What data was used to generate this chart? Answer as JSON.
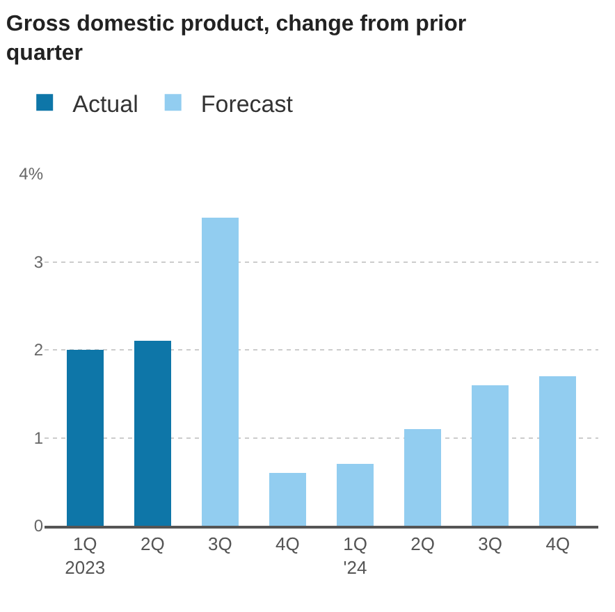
{
  "chart_data": {
    "type": "bar",
    "title": "Gross domestic product, change from prior quarter",
    "categories": [
      "1Q\n2023",
      "2Q",
      "3Q",
      "4Q",
      "1Q\n'24",
      "2Q",
      "3Q",
      "4Q"
    ],
    "series": [
      {
        "name": "Actual",
        "color": "#0e76a8",
        "values": [
          2.0,
          2.1,
          null,
          null,
          null,
          null,
          null,
          null
        ]
      },
      {
        "name": "Forecast",
        "color": "#92cdf0",
        "values": [
          null,
          null,
          3.5,
          0.6,
          0.7,
          1.1,
          1.6,
          1.7
        ]
      }
    ],
    "stacked": true,
    "ylim": [
      0,
      4
    ],
    "yticks": [
      0,
      1,
      2,
      3,
      {
        "value": 4,
        "label": "4%"
      }
    ],
    "grid": "y",
    "legend": "top left"
  }
}
